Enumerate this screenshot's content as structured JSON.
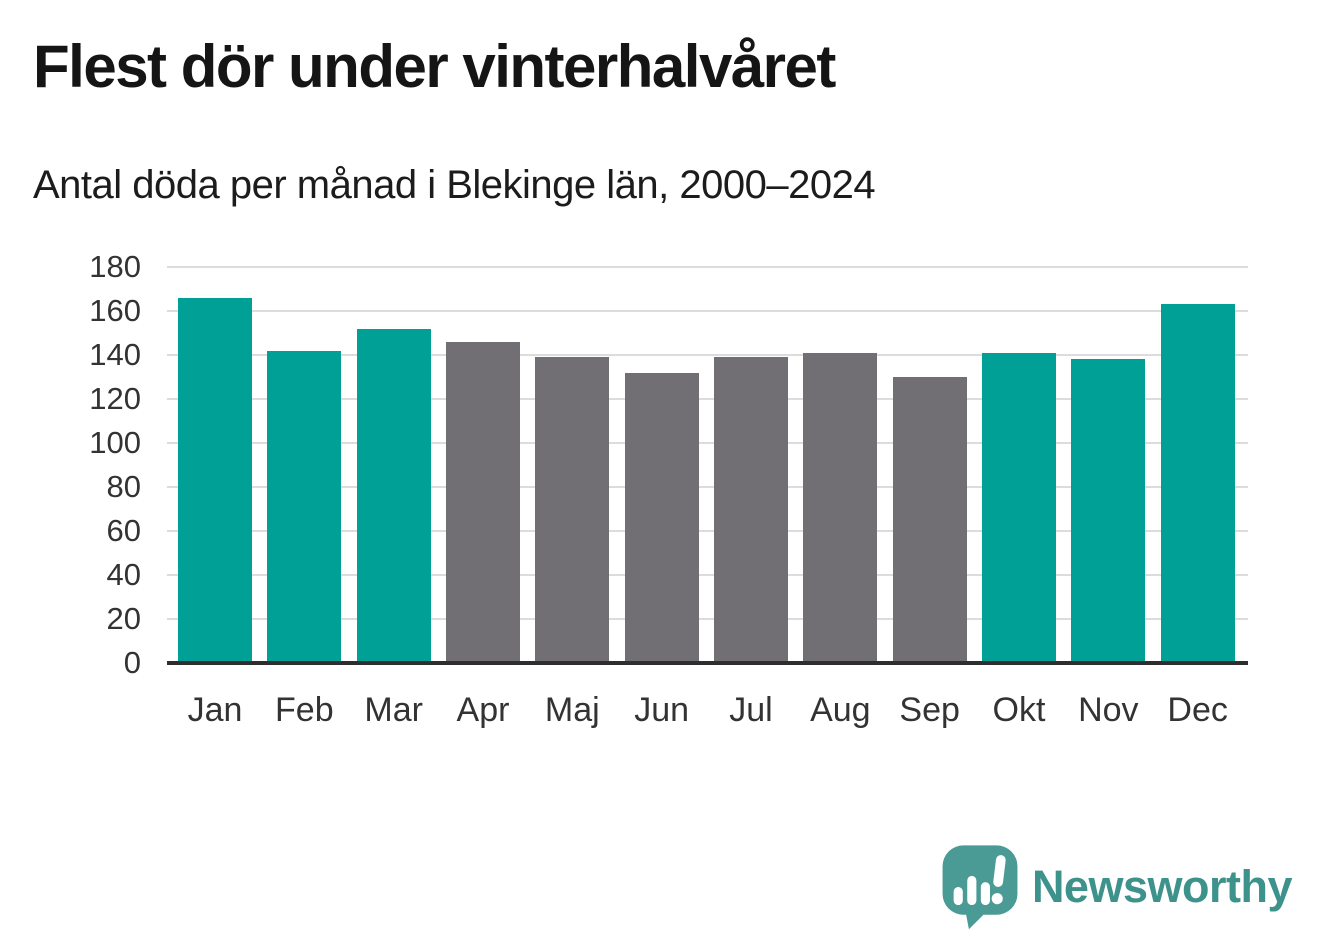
{
  "header": {
    "title": "Flest dör under vinterhalvåret",
    "subtitle": "Antal döda per månad i Blekinge län, 2000–2024"
  },
  "chart_data": {
    "type": "bar",
    "title": "Flest dör under vinterhalvåret",
    "subtitle": "Antal döda per månad i Blekinge län, 2000–2024",
    "categories": [
      "Jan",
      "Feb",
      "Mar",
      "Apr",
      "Maj",
      "Jun",
      "Jul",
      "Aug",
      "Sep",
      "Okt",
      "Nov",
      "Dec"
    ],
    "values": [
      166,
      142,
      152,
      146,
      139,
      132,
      139,
      141,
      130,
      141,
      138,
      163
    ],
    "ylim": [
      0,
      180
    ],
    "ytick_step": 20,
    "grid": true,
    "legend": "none",
    "xlabel": "",
    "ylabel": "",
    "palette": {
      "winter_highlight": "#00a096",
      "summer_neutral": "#716f74"
    },
    "bar_styles": [
      "winter_highlight",
      "winter_highlight",
      "winter_highlight",
      "summer_neutral",
      "summer_neutral",
      "summer_neutral",
      "summer_neutral",
      "summer_neutral",
      "summer_neutral",
      "winter_highlight",
      "winter_highlight",
      "winter_highlight"
    ],
    "gridline_color": "#dcdcdc",
    "axis_line_color": "#2e2e2e",
    "tick_label_color": "#333333"
  },
  "footer": {
    "brand": "Newsworthy",
    "brand_color": "#3d928c",
    "icon": "newsworthy-speech-bubble-bar-chart-icon",
    "icon_color": "#4a9b95"
  }
}
